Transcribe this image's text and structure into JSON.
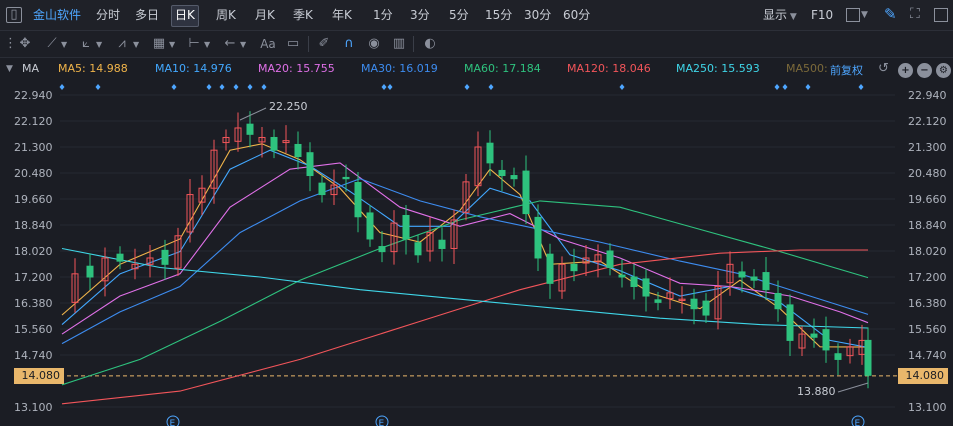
{
  "topbar": {
    "brand": "金山软件",
    "periods": [
      "分时",
      "多日",
      "日K",
      "周K",
      "月K",
      "季K",
      "年K",
      "1分",
      "3分",
      "5分",
      "15分",
      "30分",
      "60分"
    ],
    "active_period": "日K",
    "display_label": "显示",
    "f10_label": "F10"
  },
  "toolbar": {
    "text_tool": "Aa"
  },
  "ma_bar": {
    "label": "MA",
    "items": [
      {
        "text": "MA5: 14.988",
        "color": "#f0b44a"
      },
      {
        "text": "MA10: 14.976",
        "color": "#42a8ff"
      },
      {
        "text": "MA20: 15.755",
        "color": "#e070e8"
      },
      {
        "text": "MA30: 16.019",
        "color": "#3d8cf0"
      },
      {
        "text": "MA60: 17.184",
        "color": "#2ec27e"
      },
      {
        "text": "MA120: 18.046",
        "color": "#f2555a"
      },
      {
        "text": "MA250: 15.593",
        "color": "#3fd6e8"
      },
      {
        "text": "MA500:",
        "color": "#7c6a3a"
      }
    ],
    "adjust_label": "前复权"
  },
  "chart": {
    "y_ticks": [
      "22.940",
      "22.120",
      "21.300",
      "20.480",
      "19.660",
      "18.840",
      "18.020",
      "17.200",
      "16.380",
      "15.560",
      "14.740",
      "13.100"
    ],
    "current_price": "14.080",
    "high_annotation": "22.250",
    "low_annotation": "13.880",
    "event_marker": "E",
    "colors": {
      "up": "#f2555a",
      "down": "#2ec27e",
      "grid": "#262932"
    }
  }
}
